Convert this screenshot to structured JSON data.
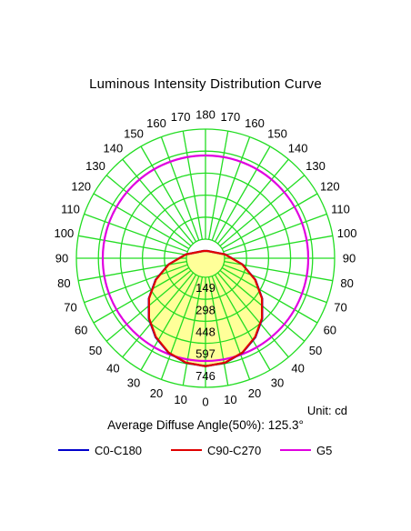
{
  "chart_data": {
    "type": "polar",
    "title": "Luminous Intensity Distribution Curve",
    "angle_labels_left": [
      "0",
      "10",
      "20",
      "30",
      "40",
      "50",
      "60",
      "70",
      "80",
      "90",
      "100",
      "110",
      "120",
      "130",
      "140",
      "150",
      "160",
      "170",
      "180"
    ],
    "angle_labels_right": [
      "10",
      "20",
      "30",
      "40",
      "50",
      "60",
      "70",
      "80",
      "90",
      "100",
      "110",
      "120",
      "130",
      "140",
      "150",
      "160",
      "170"
    ],
    "radial_ticks": [
      "149",
      "298",
      "448",
      "597",
      "746"
    ],
    "rmax": 746,
    "unit": "Unit: cd",
    "average_diffuse_angle": "Average Diffuse Angle(50%): 125.3°",
    "series": [
      {
        "name": "C0-C180",
        "color": "#0000cc",
        "angles": [
          0,
          10,
          20,
          30,
          40,
          50,
          60,
          70,
          80,
          90
        ],
        "values": [
          610,
          601,
          573,
          528,
          467,
          392,
          305,
          208,
          106,
          10
        ]
      },
      {
        "name": "C90-C270",
        "color": "#e00000",
        "angles": [
          0,
          10,
          20,
          30,
          40,
          50,
          60,
          70,
          80,
          90
        ],
        "values": [
          610,
          600,
          572,
          526,
          465,
          390,
          303,
          207,
          105,
          10
        ]
      },
      {
        "name": "G5",
        "color": "#e000e0",
        "angles": [],
        "values": []
      }
    ],
    "g5_ring_value": 597,
    "legend_placement": "bottom",
    "grid": true
  },
  "colors": {
    "grid": "#22dd22",
    "fill": "#ffff99"
  }
}
